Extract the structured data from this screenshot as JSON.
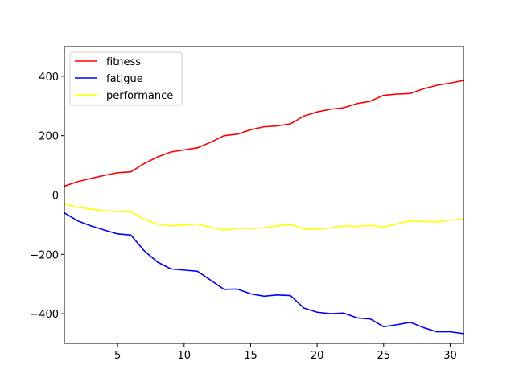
{
  "chart_data": {
    "type": "line",
    "title": "",
    "xlabel": "",
    "ylabel": "",
    "xlim": [
      1,
      31
    ],
    "ylim": [
      -500,
      500
    ],
    "xticks": [
      5,
      10,
      15,
      20,
      25,
      30
    ],
    "yticks": [
      -400,
      -200,
      0,
      200,
      400
    ],
    "ytick_labels": [
      "−400",
      "−200",
      "0",
      "200",
      "400"
    ],
    "grid": false,
    "legend_position": "upper-left",
    "x": [
      1,
      2,
      3,
      4,
      5,
      6,
      7,
      8,
      9,
      10,
      11,
      12,
      13,
      14,
      15,
      16,
      17,
      18,
      19,
      20,
      21,
      22,
      23,
      24,
      25,
      26,
      27,
      28,
      29,
      30,
      31
    ],
    "series": [
      {
        "name": "fitness",
        "color": "#ff0000",
        "values": [
          30,
          45,
          56,
          66,
          75,
          78,
          106,
          128,
          145,
          152,
          159,
          178,
          200,
          205,
          220,
          230,
          233,
          240,
          266,
          280,
          289,
          294,
          308,
          316,
          336,
          340,
          342,
          358,
          370,
          377,
          386
        ]
      },
      {
        "name": "fatigue",
        "color": "#0000ff",
        "values": [
          -60,
          -87,
          -104,
          -118,
          -131,
          -135,
          -188,
          -226,
          -249,
          -253,
          -257,
          -287,
          -318,
          -317,
          -333,
          -341,
          -337,
          -339,
          -381,
          -395,
          -400,
          -398,
          -414,
          -418,
          -444,
          -437,
          -429,
          -447,
          -461,
          -461,
          -467
        ]
      },
      {
        "name": "performance",
        "color": "#ffff00",
        "values": [
          -30,
          -41,
          -48,
          -52,
          -56,
          -57,
          -82,
          -98,
          -104,
          -101,
          -98,
          -109,
          -118,
          -112,
          -113,
          -111,
          -104,
          -99,
          -115,
          -115,
          -111,
          -104,
          -106,
          -102,
          -108,
          -97,
          -87,
          -89,
          -91,
          -84,
          -81
        ]
      }
    ]
  }
}
